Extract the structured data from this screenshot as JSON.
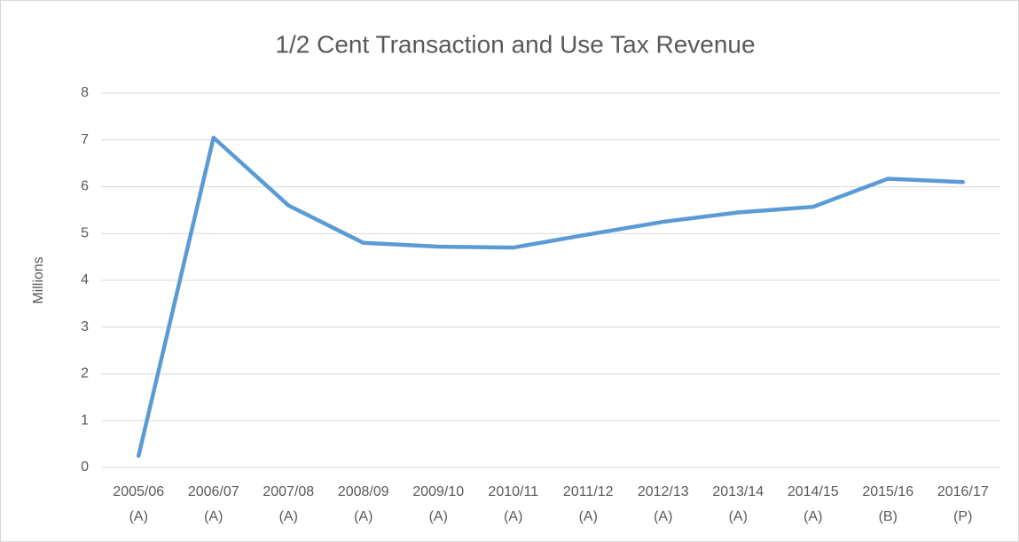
{
  "chart_data": {
    "type": "line",
    "title": "1/2 Cent Transaction and Use Tax Revenue",
    "y_label": "Millions",
    "categories": [
      [
        "2005/06",
        "(A)"
      ],
      [
        "2006/07",
        "(A)"
      ],
      [
        "2007/08",
        "(A)"
      ],
      [
        "2008/09",
        "(A)"
      ],
      [
        "2009/10",
        "(A)"
      ],
      [
        "2010/11",
        "(A)"
      ],
      [
        "2011/12",
        "(A)"
      ],
      [
        "2012/13",
        "(A)"
      ],
      [
        "2013/14",
        "(A)"
      ],
      [
        "2014/15",
        "(A)"
      ],
      [
        "2015/16",
        "(B)"
      ],
      [
        "2016/17",
        "(P)"
      ]
    ],
    "values": [
      0.25,
      7.05,
      5.6,
      4.8,
      4.72,
      4.7,
      4.98,
      5.25,
      5.45,
      5.57,
      6.17,
      6.1
    ],
    "color": "#5b9bd5",
    "ylim": [
      0,
      8
    ],
    "yticks": [
      0,
      1,
      2,
      3,
      4,
      5,
      6,
      7,
      8
    ],
    "grid": true
  }
}
